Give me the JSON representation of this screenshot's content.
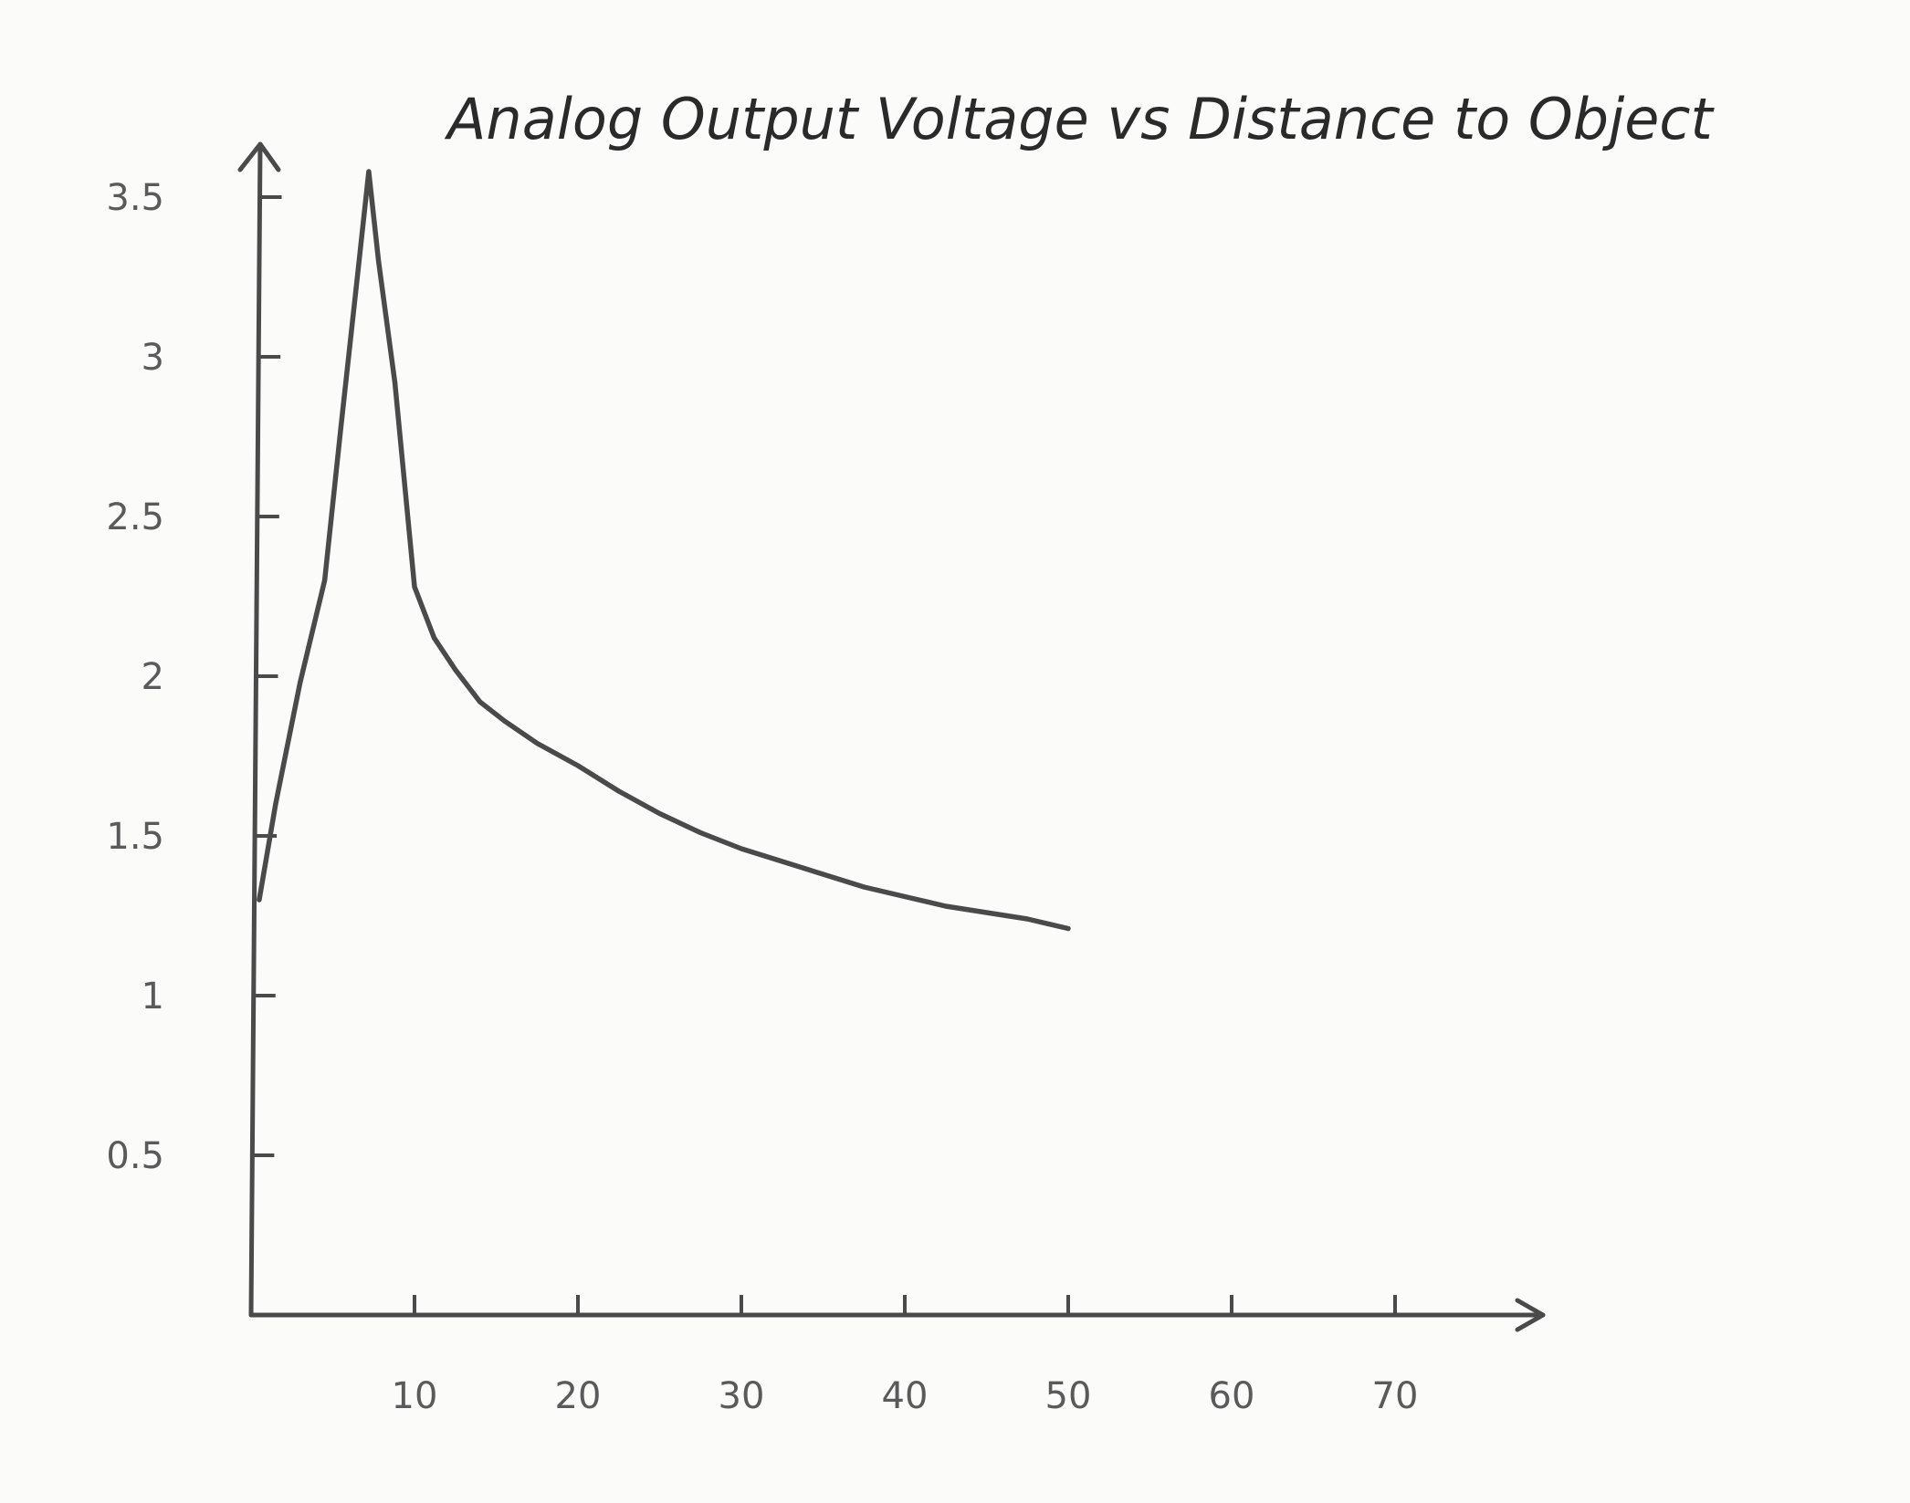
{
  "chart_data": {
    "type": "line",
    "title": "Analog Output Voltage vs Distance to Object",
    "xlabel": "",
    "ylabel": "",
    "xlim": [
      0,
      75
    ],
    "ylim": [
      0,
      3.5
    ],
    "x_ticks": [
      10,
      20,
      30,
      40,
      50,
      60,
      70
    ],
    "x_tick_labels": [
      "10",
      "20",
      "30",
      "40",
      "50",
      "60",
      "70"
    ],
    "y_ticks": [
      0.5,
      1,
      1.5,
      2,
      2.5,
      3,
      3.5
    ],
    "y_tick_labels": [
      "0.5",
      "1",
      "1.5",
      "2",
      "2.5",
      "3",
      "3.5"
    ],
    "grid": false,
    "legend": "none",
    "line_color": "#4a4a4a",
    "series": [
      {
        "x": [
          0.5,
          1.5,
          3,
          4.5,
          5.5,
          6.5,
          7.2,
          7.8,
          8.8,
          10,
          11.2,
          12.5,
          14,
          15.5,
          17.5,
          20,
          22.5,
          25,
          27.5,
          30,
          32.5,
          35,
          37.5,
          40,
          42.5,
          45,
          47.5,
          50
        ],
        "y": [
          1.3,
          1.6,
          1.98,
          2.3,
          2.78,
          3.25,
          3.58,
          3.3,
          2.92,
          2.28,
          2.12,
          2.02,
          1.92,
          1.86,
          1.79,
          1.72,
          1.64,
          1.57,
          1.51,
          1.46,
          1.42,
          1.38,
          1.34,
          1.31,
          1.28,
          1.26,
          1.24,
          1.21
        ]
      }
    ]
  }
}
